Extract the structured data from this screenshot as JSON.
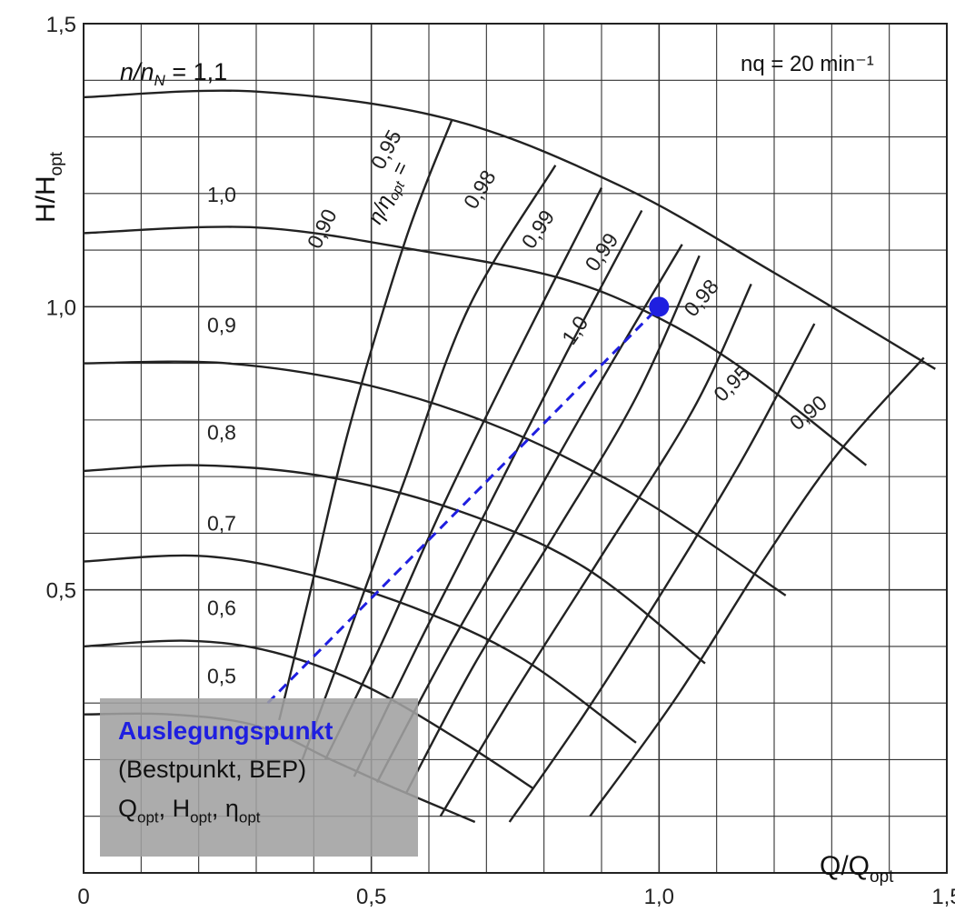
{
  "chart_data": {
    "type": "line",
    "xlabel": "Q/Qopt",
    "ylabel": "H/Hopt",
    "xlim": [
      0,
      1.5
    ],
    "ylim": [
      0,
      1.5
    ],
    "grid": true,
    "x_ticks": [
      "0",
      "0,5",
      "1,0",
      "1,5"
    ],
    "y_ticks": [
      "0,5",
      "1,0",
      "1,5"
    ],
    "corner_note": "nq = 20 min⁻¹",
    "speed_curves": [
      {
        "label": "n/nN = 1,1",
        "n": 1.1,
        "x": [
          0,
          0.3,
          0.64,
          0.94,
          1.2,
          1.48
        ],
        "y": [
          1.37,
          1.38,
          1.33,
          1.21,
          1.06,
          0.89
        ]
      },
      {
        "label": "1,0",
        "n": 1.0,
        "x": [
          0,
          0.3,
          0.58,
          0.83,
          1.0,
          1.16,
          1.36
        ],
        "y": [
          1.13,
          1.14,
          1.1,
          1.05,
          0.98,
          0.88,
          0.72
        ]
      },
      {
        "label": "0,9",
        "n": 0.9,
        "x": [
          0,
          0.25,
          0.5,
          0.74,
          0.97,
          1.22
        ],
        "y": [
          0.9,
          0.9,
          0.86,
          0.78,
          0.66,
          0.49
        ]
      },
      {
        "label": "0,8",
        "n": 0.8,
        "x": [
          0,
          0.2,
          0.42,
          0.65,
          0.87,
          1.08
        ],
        "y": [
          0.71,
          0.72,
          0.7,
          0.64,
          0.54,
          0.37
        ]
      },
      {
        "label": "0,7",
        "n": 0.7,
        "x": [
          0,
          0.2,
          0.38,
          0.57,
          0.76,
          0.96
        ],
        "y": [
          0.55,
          0.56,
          0.53,
          0.47,
          0.38,
          0.23
        ]
      },
      {
        "label": "0,6",
        "n": 0.6,
        "x": [
          0,
          0.18,
          0.33,
          0.49,
          0.66,
          0.78
        ],
        "y": [
          0.4,
          0.41,
          0.39,
          0.33,
          0.23,
          0.15
        ]
      },
      {
        "label": "0,5",
        "n": 0.5,
        "x": [
          0,
          0.15,
          0.3,
          0.43,
          0.54,
          0.68
        ],
        "y": [
          0.28,
          0.28,
          0.26,
          0.2,
          0.15,
          0.09
        ]
      }
    ],
    "efficiency_curves": [
      {
        "label": "η/ηopt = 0,90",
        "x": [
          0.34,
          0.39,
          0.46,
          0.56,
          0.64
        ],
        "y": [
          0.27,
          0.48,
          0.78,
          1.12,
          1.33
        ]
      },
      {
        "label": "0,95",
        "x": [
          0.38,
          0.46,
          0.56,
          0.67,
          0.82
        ],
        "y": [
          0.2,
          0.42,
          0.7,
          1.0,
          1.25
        ]
      },
      {
        "label": "0,98",
        "x": [
          0.42,
          0.52,
          0.63,
          0.76,
          0.9
        ],
        "y": [
          0.2,
          0.41,
          0.66,
          0.93,
          1.21
        ]
      },
      {
        "label": "0,99",
        "x": [
          0.47,
          0.58,
          0.7,
          0.84,
          0.97
        ],
        "y": [
          0.17,
          0.4,
          0.64,
          0.92,
          1.17
        ]
      },
      {
        "label": "1,0",
        "x": [
          0.51,
          0.63,
          0.76,
          0.9,
          1.04
        ],
        "y": [
          0.16,
          0.39,
          0.62,
          0.87,
          1.11
        ]
      },
      {
        "label": "0,99",
        "x": [
          0.56,
          0.68,
          0.82,
          0.96,
          1.07
        ],
        "y": [
          0.14,
          0.37,
          0.6,
          0.84,
          1.09
        ]
      },
      {
        "label": "0,98",
        "x": [
          0.62,
          0.75,
          0.9,
          1.06,
          1.16
        ],
        "y": [
          0.1,
          0.32,
          0.56,
          0.82,
          1.04
        ]
      },
      {
        "label": "0,95",
        "x": [
          0.74,
          0.87,
          1.02,
          1.15,
          1.27
        ],
        "y": [
          0.09,
          0.28,
          0.52,
          0.74,
          0.97
        ]
      },
      {
        "label": "0,90",
        "x": [
          0.88,
          1.03,
          1.18,
          1.31,
          1.46
        ],
        "y": [
          0.1,
          0.31,
          0.55,
          0.74,
          0.91
        ]
      }
    ],
    "design_point": {
      "x": 1.0,
      "y": 1.0,
      "color": "#1f1fe0"
    },
    "design_leader_start": {
      "x": 0.32,
      "y": 0.3
    }
  },
  "annotation": {
    "title": "Auslegungspunkt",
    "line2": "(Bestpunkt, BEP)",
    "line3_q": "Q",
    "line3_h": "H",
    "line3_eta": "η",
    "sub_opt": "opt",
    "sep": ", "
  },
  "axis": {
    "y_main": "H/H",
    "y_sub": "opt",
    "x_main": "Q/Q",
    "x_sub": "opt"
  },
  "labels": {
    "n_ratio_prefix": "n/n",
    "n_ratio_sub": "N",
    "n_ratio_value": " = 1,1",
    "eta_ratio": "η/η",
    "eta_sub": "opt",
    "eta_eq": " ="
  },
  "colors": {
    "accent": "#1f1fe0",
    "ink": "#222222",
    "grid": "#333333",
    "box": "#a0a0a0"
  }
}
